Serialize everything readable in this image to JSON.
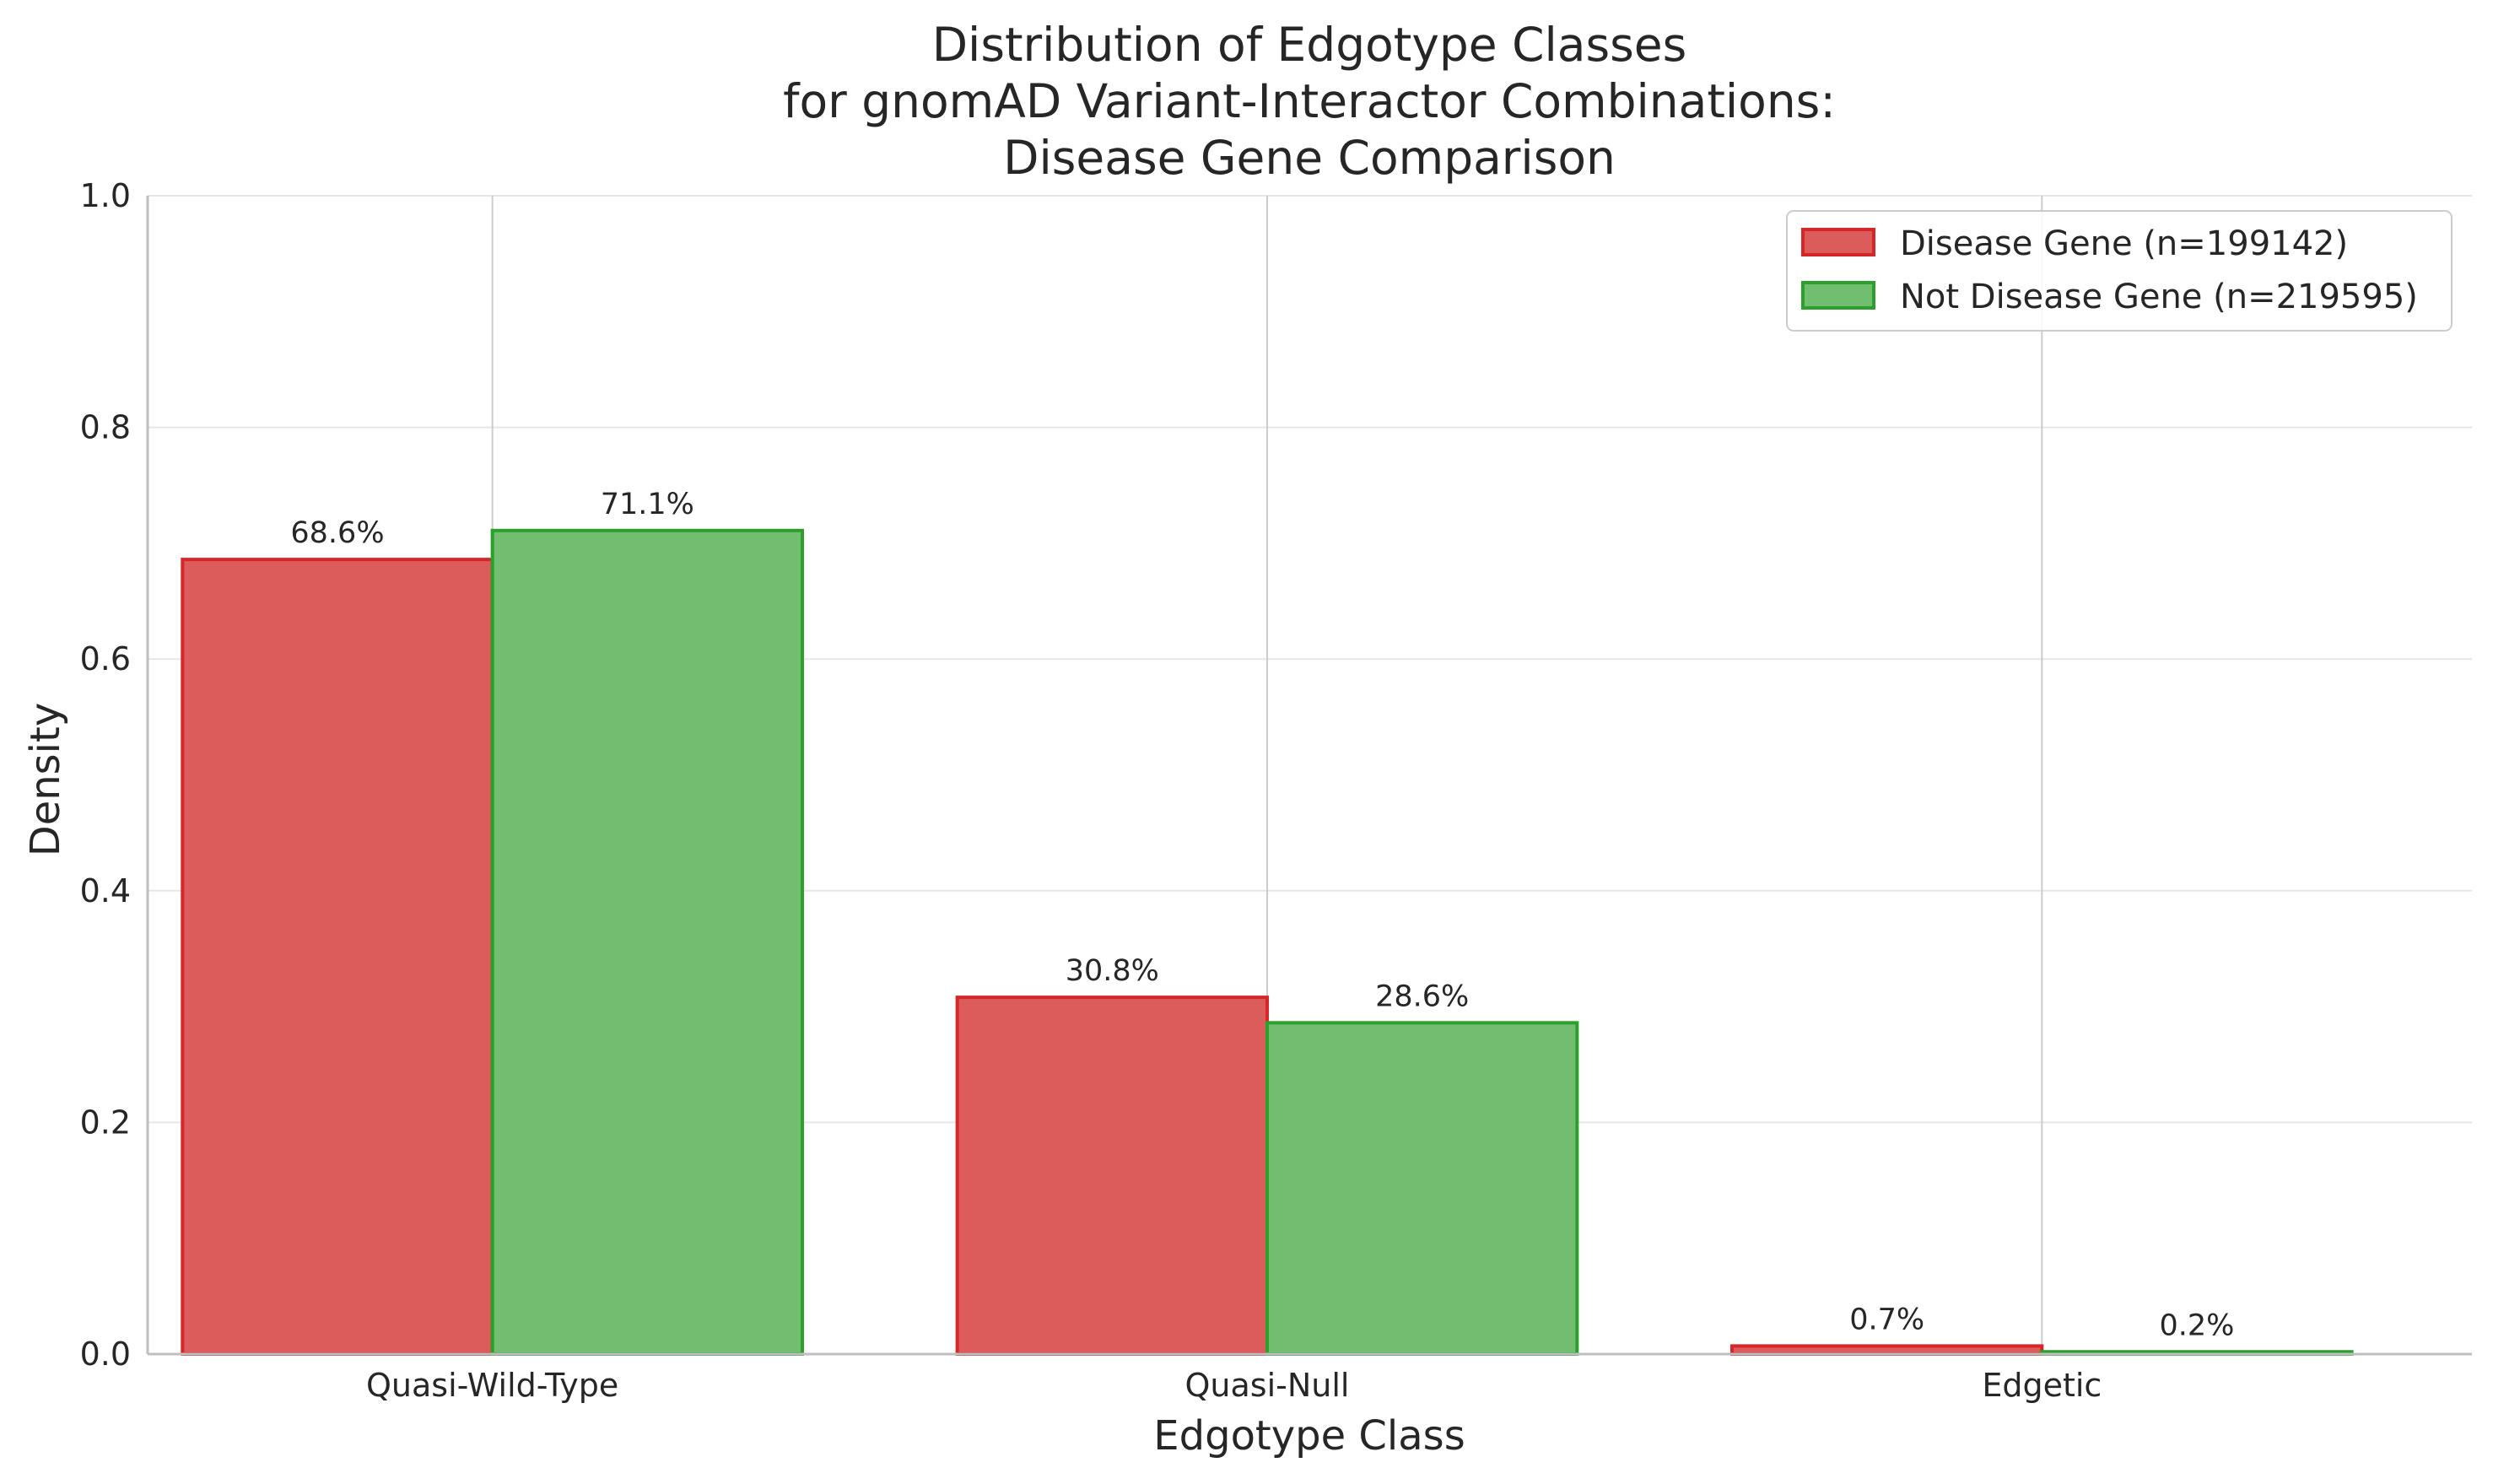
{
  "colors": {
    "disease": "#d62728",
    "not_disease": "#2ca02c",
    "disease_fill": "#dc5c5c",
    "not_disease_fill": "#71be71",
    "grid": "#e6e6e6",
    "axis": "#bfbfbf",
    "text": "#262626"
  },
  "chart_data": {
    "type": "bar",
    "title_lines": [
      "Distribution of Edgotype Classes",
      "for gnomAD Variant-Interactor Combinations:",
      "Disease Gene Comparison"
    ],
    "xlabel": "Edgotype Class",
    "ylabel": "Density",
    "categories": [
      "Quasi-Wild-Type",
      "Quasi-Null",
      "Edgetic"
    ],
    "series": [
      {
        "name": "Disease Gene (n=199142)",
        "values": [
          0.686,
          0.308,
          0.007
        ],
        "labels": [
          "68.6%",
          "30.8%",
          "0.7%"
        ]
      },
      {
        "name": "Not Disease Gene (n=219595)",
        "values": [
          0.711,
          0.286,
          0.002
        ],
        "labels": [
          "71.1%",
          "28.6%",
          "0.2%"
        ]
      }
    ],
    "ylim": [
      0,
      1.0
    ],
    "yticks": [
      "0.0",
      "0.2",
      "0.4",
      "0.6",
      "0.8",
      "1.0"
    ],
    "grid": true,
    "legend_position": "top-right"
  }
}
